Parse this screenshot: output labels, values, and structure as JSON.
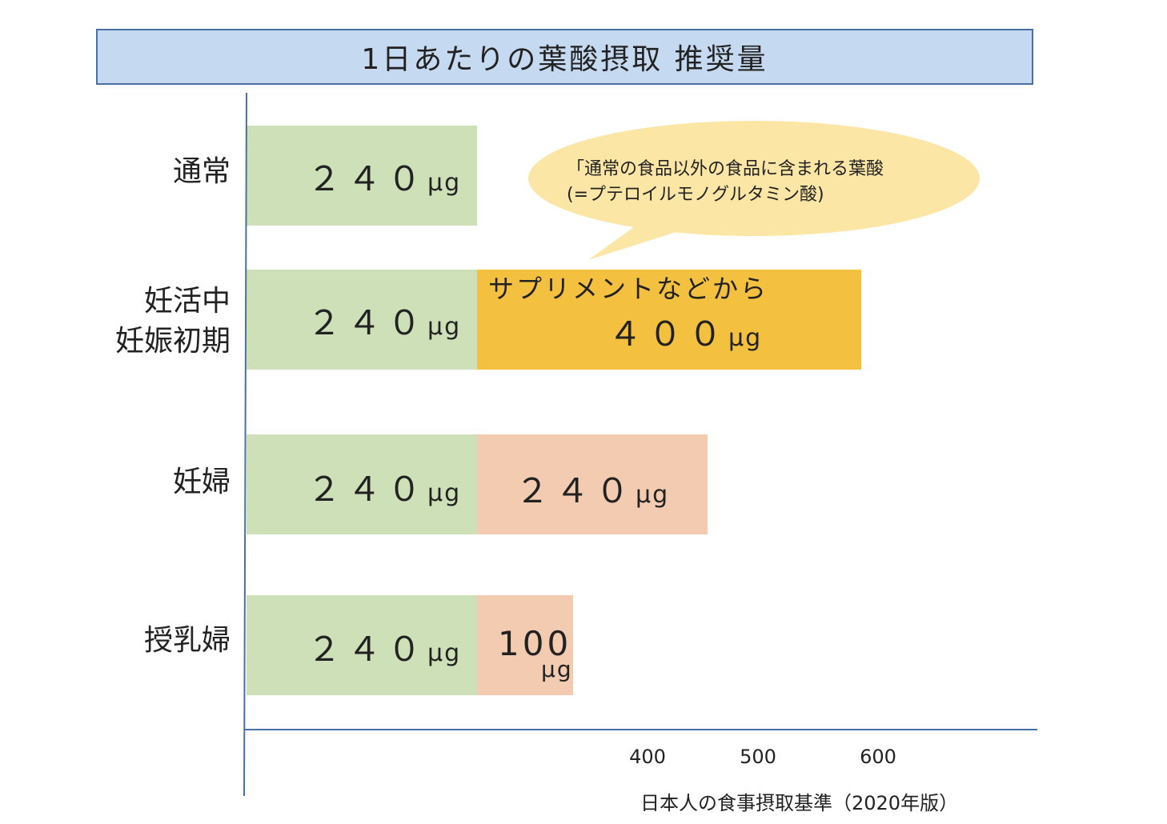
{
  "chart_data": {
    "type": "bar",
    "stacked": true,
    "orientation": "horizontal",
    "title": "1日あたりの葉酸摂取 推奨量",
    "categories": [
      {
        "lines": [
          "通常"
        ]
      },
      {
        "lines": [
          "妊活中",
          "妊娠初期"
        ]
      },
      {
        "lines": [
          "妊婦"
        ]
      },
      {
        "lines": [
          "授乳婦"
        ]
      }
    ],
    "series": [
      {
        "color": "#cde0b8",
        "values": [
          240,
          240,
          240,
          240
        ]
      },
      {
        "color": "#f4c03f",
        "values": [
          0,
          400,
          0,
          0
        ],
        "caption": "サプリメントなどから"
      },
      {
        "color": "#f2cbb0",
        "values": [
          0,
          0,
          240,
          100
        ]
      }
    ],
    "value_labels": {
      "base": "２４０",
      "supplement": "４００",
      "pregnant_extra": "２４０",
      "lactating_extra": "100",
      "unit": "μg"
    },
    "x_ticks": [
      400,
      500,
      600
    ],
    "grid": false,
    "callout": {
      "line1": "「通常の食品以外の食品に含まれる葉酸",
      "line2": "(=プテロイルモノグルタミン酸)"
    },
    "source_note": "日本人の食事摂取基準（2020年版）"
  }
}
